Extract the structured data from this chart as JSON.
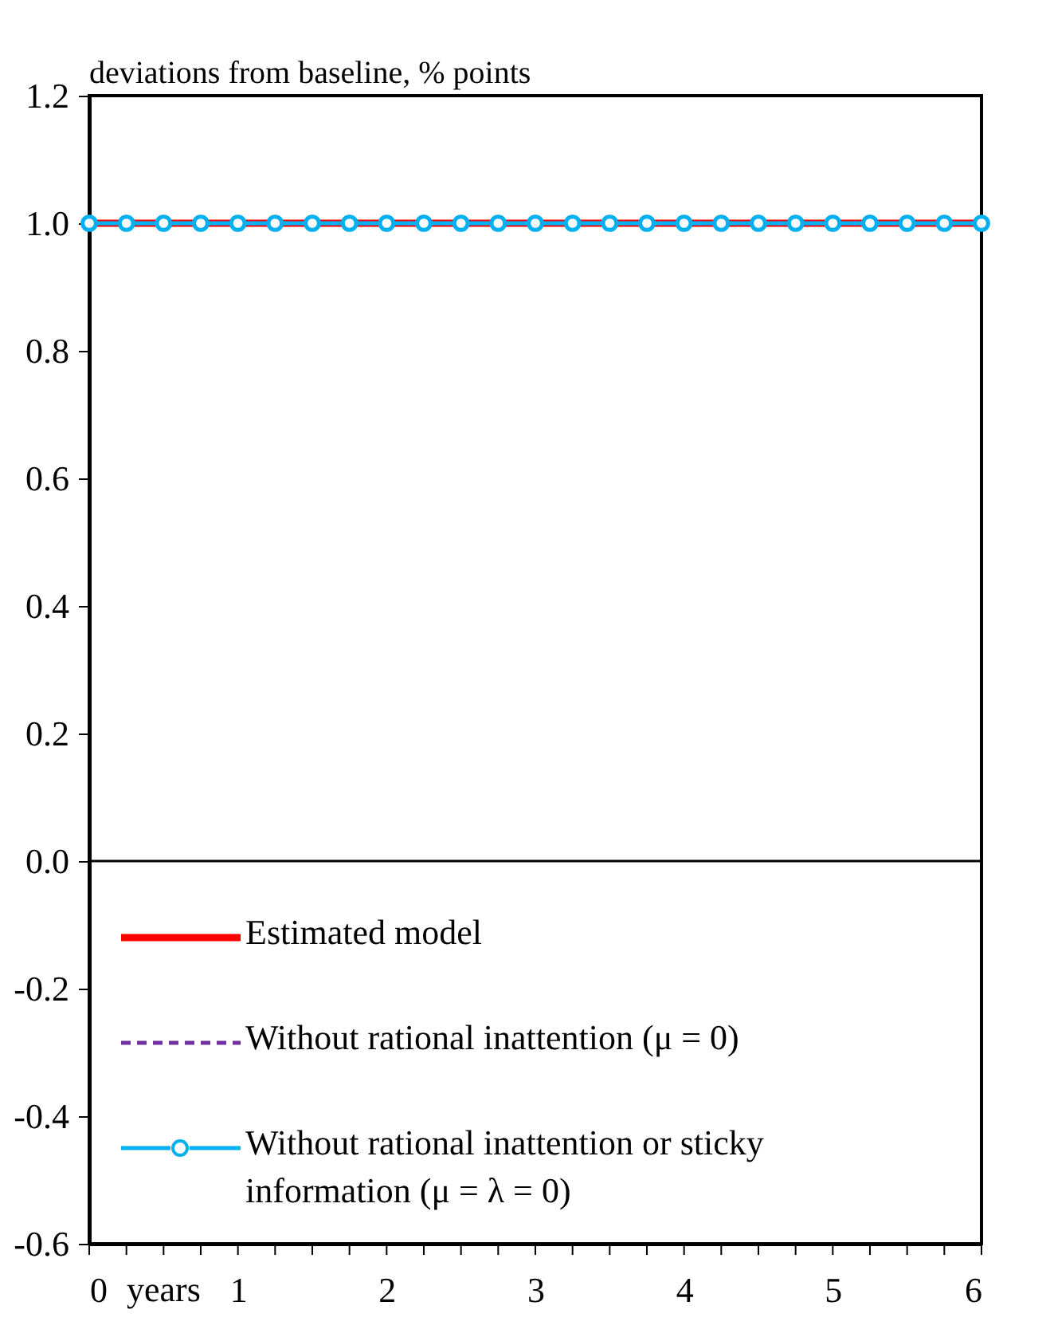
{
  "chart_data": {
    "type": "line",
    "ylabel": "deviations from baseline, % points",
    "xlabel": "years",
    "x": [
      0,
      0.25,
      0.5,
      0.75,
      1,
      1.25,
      1.5,
      1.75,
      2,
      2.25,
      2.5,
      2.75,
      3,
      3.25,
      3.5,
      3.75,
      4,
      4.25,
      4.5,
      4.75,
      5,
      5.25,
      5.5,
      5.75,
      6
    ],
    "series": [
      {
        "name": "Estimated model",
        "color": "#ff0000",
        "line_style": "solid",
        "marker": "none",
        "values": [
          1,
          1,
          1,
          1,
          1,
          1,
          1,
          1,
          1,
          1,
          1,
          1,
          1,
          1,
          1,
          1,
          1,
          1,
          1,
          1,
          1,
          1,
          1,
          1,
          1
        ]
      },
      {
        "name": "Without rational inattention  (μ = 0)",
        "color": "#7030a0",
        "line_style": "dashed",
        "marker": "none",
        "values": [
          1,
          1,
          1,
          1,
          1,
          1,
          1,
          1,
          1,
          1,
          1,
          1,
          1,
          1,
          1,
          1,
          1,
          1,
          1,
          1,
          1,
          1,
          1,
          1,
          1
        ]
      },
      {
        "name": "Without rational inattention or sticky information  (μ = λ = 0)",
        "color": "#00b0f0",
        "line_style": "solid",
        "marker": "circle",
        "values": [
          1,
          1,
          1,
          1,
          1,
          1,
          1,
          1,
          1,
          1,
          1,
          1,
          1,
          1,
          1,
          1,
          1,
          1,
          1,
          1,
          1,
          1,
          1,
          1,
          1
        ]
      }
    ],
    "xlim": [
      0,
      6
    ],
    "xticks": [
      0,
      {
        "value": 0.25,
        "label": null
      },
      {
        "value": 0.5,
        "label": null
      },
      {
        "value": 0.75,
        "label": null
      },
      1,
      {
        "value": 1.25,
        "label": null
      },
      {
        "value": 1.5,
        "label": null
      },
      {
        "value": 1.75,
        "label": null
      },
      2,
      {
        "value": 2.25,
        "label": null
      },
      {
        "value": 2.5,
        "label": null
      },
      {
        "value": 2.75,
        "label": null
      },
      3,
      {
        "value": 3.25,
        "label": null
      },
      {
        "value": 3.5,
        "label": null
      },
      {
        "value": 3.75,
        "label": null
      },
      4,
      {
        "value": 4.25,
        "label": null
      },
      {
        "value": 4.5,
        "label": null
      },
      {
        "value": 4.75,
        "label": null
      },
      5,
      {
        "value": 5.25,
        "label": null
      },
      {
        "value": 5.5,
        "label": null
      },
      {
        "value": 5.75,
        "label": null
      },
      6
    ],
    "ylim": [
      -0.6,
      1.2
    ],
    "yticks": [
      {
        "value": -0.6,
        "label": "-0.6"
      },
      {
        "value": -0.4,
        "label": "-0.4"
      },
      {
        "value": -0.2,
        "label": "-0.2"
      },
      {
        "value": 0,
        "label": "0.0"
      },
      {
        "value": 0.2,
        "label": "0.2"
      },
      {
        "value": 0.4,
        "label": "0.4"
      },
      {
        "value": 0.6,
        "label": "0.6"
      },
      {
        "value": 0.8,
        "label": "0.8"
      },
      {
        "value": 1,
        "label": "1.0"
      },
      {
        "value": 1.2,
        "label": "1.2"
      }
    ],
    "ref_lines": [
      {
        "axis": "y",
        "value": 0,
        "color": "#000000"
      }
    ],
    "grid": false,
    "legend": "bottom left"
  }
}
